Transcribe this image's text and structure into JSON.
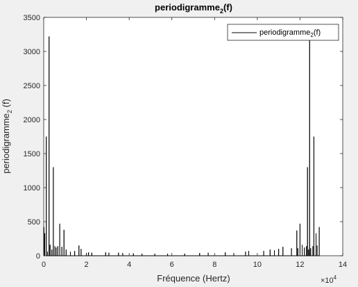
{
  "chart_data": {
    "type": "line",
    "title": "periodigramme",
    "title_sub": "2",
    "title_suffix": "(f)",
    "xlabel": "Fréquence (Hertz)",
    "ylabel": "periodigramme",
    "ylabel_sub": "2",
    "ylabel_suffix": " (f)",
    "x_exponent_base": "×10",
    "x_exponent": "4",
    "xlim": [
      0,
      14
    ],
    "ylim": [
      0,
      3500
    ],
    "x_ticks": [
      "0",
      "2",
      "4",
      "6",
      "8",
      "10",
      "12",
      "14"
    ],
    "y_ticks": [
      "0",
      "500",
      "1000",
      "1500",
      "2000",
      "2500",
      "3000",
      "3500"
    ],
    "legend_position": "top-right",
    "grid": false,
    "series": [
      {
        "name": "periodigramme",
        "name_sub": "2",
        "name_suffix": "(f)",
        "color": "#000000",
        "peaks_x": [
          0.01,
          0.05,
          0.12,
          0.18,
          0.25,
          0.3,
          0.38,
          0.45,
          0.52,
          0.58,
          0.66,
          0.75,
          0.85,
          0.95,
          1.05,
          1.25,
          1.45,
          1.65,
          1.75,
          2.0,
          2.1,
          2.25,
          2.9,
          3.05,
          3.5,
          3.7,
          4.2,
          4.6,
          5.2,
          5.8,
          6.6,
          7.3,
          7.7,
          8.5,
          8.9,
          9.45,
          9.6,
          10.3,
          10.6,
          10.8,
          11.0,
          11.2,
          11.6,
          11.85,
          11.9,
          12.0,
          12.1,
          12.2,
          12.3,
          12.35,
          12.4,
          12.45,
          12.5,
          12.6,
          12.65,
          12.75,
          12.8,
          12.9
        ],
        "peaks_y": [
          420,
          330,
          1750,
          60,
          3220,
          160,
          90,
          1300,
          140,
          120,
          140,
          470,
          130,
          380,
          90,
          60,
          70,
          150,
          100,
          40,
          50,
          45,
          50,
          45,
          45,
          40,
          35,
          30,
          30,
          30,
          30,
          40,
          45,
          50,
          40,
          60,
          70,
          70,
          90,
          80,
          100,
          130,
          110,
          370,
          110,
          470,
          160,
          120,
          140,
          1300,
          90,
          3220,
          110,
          140,
          1750,
          330,
          150,
          420
        ]
      }
    ]
  }
}
